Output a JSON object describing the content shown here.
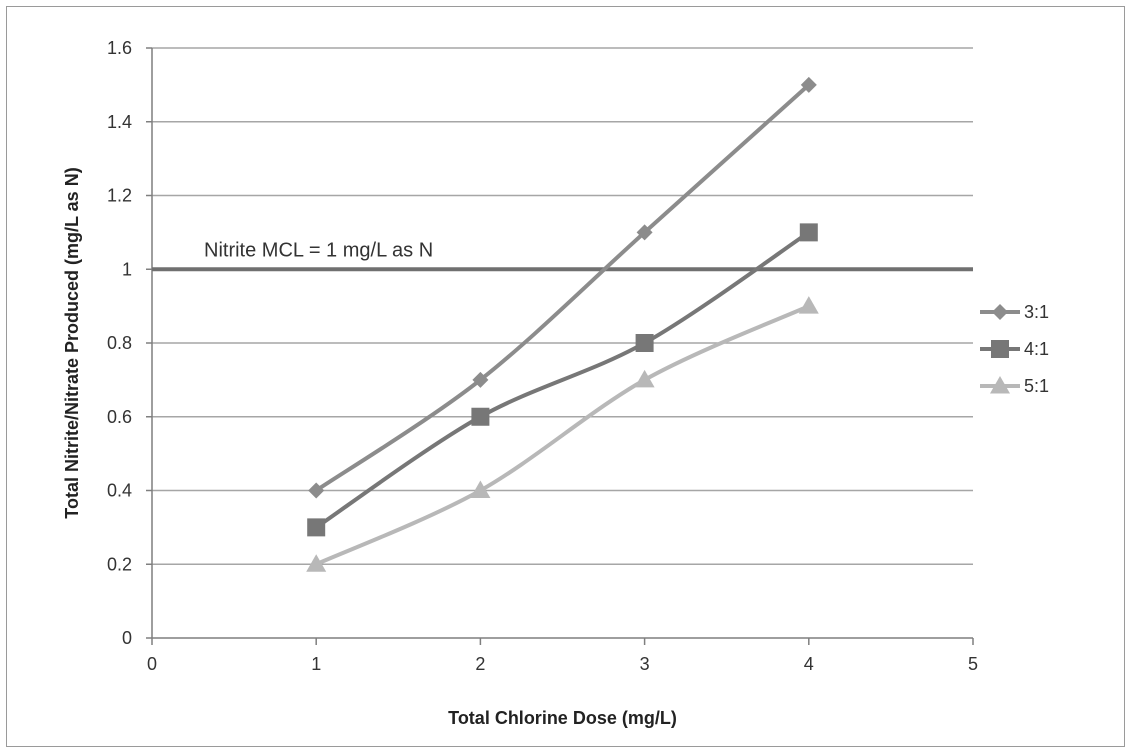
{
  "chart_data": {
    "type": "line",
    "title": "",
    "xlabel": "Total Chlorine Dose (mg/L)",
    "ylabel": "Total Nitrite/Nitrate Produced  (mg/L as N)",
    "xlim": [
      0,
      5
    ],
    "ylim": [
      0,
      1.6
    ],
    "x_ticks": [
      "0",
      "1",
      "2",
      "3",
      "4",
      "5"
    ],
    "y_ticks": [
      "0",
      "0.2",
      "0.4",
      "0.6",
      "0.8",
      "1",
      "1.2",
      "1.4",
      "1.6"
    ],
    "grid": "horizontal",
    "legend_position": "right",
    "x": [
      1,
      2,
      3,
      4
    ],
    "series": [
      {
        "name": "3:1",
        "values": [
          0.4,
          0.7,
          1.1,
          1.5
        ],
        "color": "#8c8c8c",
        "marker": "diamond"
      },
      {
        "name": "4:1",
        "values": [
          0.3,
          0.6,
          0.8,
          1.1
        ],
        "color": "#777777",
        "marker": "square"
      },
      {
        "name": "5:1",
        "values": [
          0.2,
          0.4,
          0.7,
          0.9
        ],
        "color": "#b8b8b8",
        "marker": "triangle"
      }
    ],
    "reference_line": {
      "y": 1,
      "label": "Nitrite MCL = 1 mg/L as N",
      "color": "#707070"
    }
  }
}
